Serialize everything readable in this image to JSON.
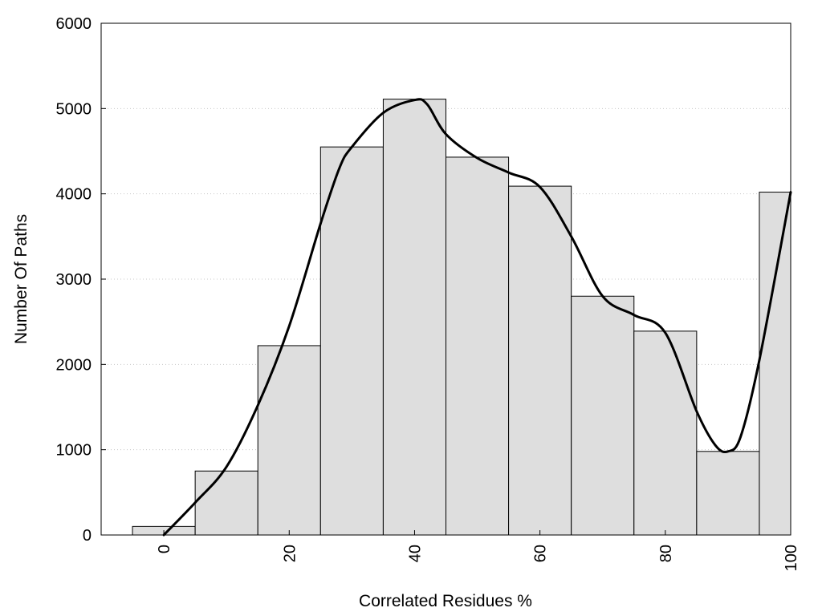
{
  "chart_data": {
    "type": "bar",
    "xlabel": "Correlated Residues %",
    "ylabel": "Number Of Paths",
    "xlim": [
      -10,
      100
    ],
    "ylim": [
      0,
      6000
    ],
    "x_ticks": [
      0,
      20,
      40,
      60,
      80,
      100
    ],
    "y_ticks": [
      0,
      1000,
      2000,
      3000,
      4000,
      5000,
      6000
    ],
    "grid": "horizontal dotted",
    "bar_width": 10,
    "bar_color": "#dedede",
    "bars": [
      {
        "x": 0,
        "value": 100
      },
      {
        "x": 10,
        "value": 750
      },
      {
        "x": 20,
        "value": 2220
      },
      {
        "x": 30,
        "value": 4550
      },
      {
        "x": 40,
        "value": 5110
      },
      {
        "x": 50,
        "value": 4430
      },
      {
        "x": 60,
        "value": 4090
      },
      {
        "x": 70,
        "value": 2800
      },
      {
        "x": 80,
        "value": 2390
      },
      {
        "x": 90,
        "value": 980
      },
      {
        "x": 100,
        "value": 4020
      }
    ],
    "curve": {
      "x": [
        0,
        5,
        10,
        15,
        20,
        25,
        28,
        30,
        35,
        40,
        42,
        45,
        50,
        55,
        60,
        65,
        70,
        75,
        80,
        85,
        88,
        90,
        92,
        95,
        100
      ],
      "y": [
        0,
        380,
        800,
        1520,
        2450,
        3650,
        4300,
        4550,
        4950,
        5100,
        5050,
        4700,
        4420,
        4250,
        4080,
        3500,
        2800,
        2580,
        2370,
        1450,
        1050,
        980,
        1150,
        2050,
        4020
      ]
    }
  }
}
